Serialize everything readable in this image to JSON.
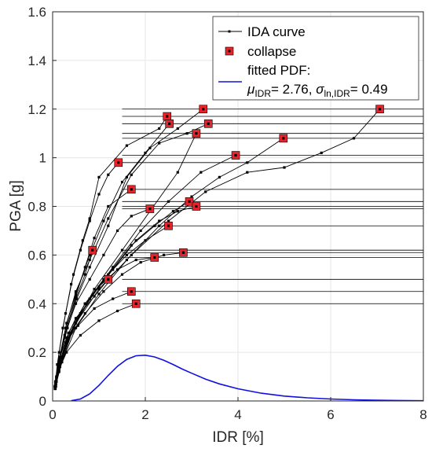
{
  "colors": {
    "ida": "#000000",
    "collapse_fill": "#e8242a",
    "pdf": "#1010e0",
    "axis": "#262626",
    "grid": "#e6e6e6"
  },
  "chart_data": {
    "type": "line",
    "xlabel": "IDR [%]",
    "ylabel": "PGA [g]",
    "xlim": [
      0,
      8
    ],
    "ylim": [
      0,
      1.6
    ],
    "xticks": [
      0,
      2,
      4,
      6,
      8
    ],
    "yticks": [
      0,
      0.2,
      0.4,
      0.6,
      0.8,
      1,
      1.2,
      1.4,
      1.6
    ],
    "xtick_labels": [
      "0",
      "2",
      "4",
      "6",
      "8"
    ],
    "ytick_labels": [
      "0",
      "0.2",
      "0.4",
      "0.6",
      "0.8",
      "1",
      "1.2",
      "1.4",
      "1.6"
    ],
    "grid": true,
    "legend_position": "top-right",
    "legend": {
      "ida": "IDA curve",
      "collapse": "collapse",
      "pdf_line1": "fitted PDF:",
      "mu_sym": "μ",
      "mu_sub": "IDR",
      "mu_val": "= 2.76, ",
      "sigma_sym": "σ",
      "sigma_sub": "ln,IDR",
      "sigma_val": "= 0.49"
    },
    "fitted_pdf": {
      "mu": 2.76,
      "sigma_ln": 0.49,
      "x": [
        0.4,
        0.6,
        0.8,
        1.0,
        1.2,
        1.4,
        1.6,
        1.8,
        2.0,
        2.2,
        2.4,
        2.6,
        2.8,
        3.0,
        3.3,
        3.6,
        4.0,
        4.5,
        5.0,
        5.5,
        6.0,
        6.5,
        7.0,
        7.5,
        8.0
      ],
      "y": [
        0.001,
        0.008,
        0.029,
        0.064,
        0.105,
        0.143,
        0.171,
        0.186,
        0.188,
        0.181,
        0.167,
        0.15,
        0.131,
        0.114,
        0.09,
        0.07,
        0.05,
        0.032,
        0.02,
        0.013,
        0.008,
        0.005,
        0.003,
        0.002,
        0.001
      ]
    },
    "series": [
      {
        "x": [
          0.06,
          0.1,
          0.22,
          0.4,
          0.6,
          0.8,
          1.0,
          1.2,
          1.42
        ],
        "y": [
          0.07,
          0.15,
          0.3,
          0.48,
          0.62,
          0.74,
          0.85,
          0.93,
          0.98
        ],
        "collapse": [
          1.42,
          0.98
        ]
      },
      {
        "x": [
          0.08,
          0.14,
          0.28,
          0.45,
          0.65,
          0.8,
          1.0,
          1.6,
          2.3,
          2.47
        ],
        "y": [
          0.1,
          0.2,
          0.36,
          0.52,
          0.66,
          0.75,
          0.92,
          1.05,
          1.12,
          1.17
        ],
        "collapse": [
          2.47,
          1.17
        ]
      },
      {
        "x": [
          0.05,
          0.12,
          0.3,
          0.5,
          0.8,
          1.1,
          1.5,
          2.0,
          2.52
        ],
        "y": [
          0.06,
          0.14,
          0.32,
          0.44,
          0.6,
          0.74,
          0.9,
          1.02,
          1.14
        ],
        "collapse": [
          2.52,
          1.14
        ]
      },
      {
        "x": [
          0.08,
          0.16,
          0.32,
          0.52,
          0.8,
          1.2,
          1.6,
          2.1,
          2.7,
          3.25
        ],
        "y": [
          0.09,
          0.18,
          0.3,
          0.42,
          0.55,
          0.72,
          0.92,
          1.04,
          1.12,
          1.2
        ],
        "collapse": [
          3.25,
          1.2
        ]
      },
      {
        "x": [
          0.06,
          0.14,
          0.28,
          0.5,
          0.8,
          1.2,
          1.7,
          2.3,
          2.9,
          3.36
        ],
        "y": [
          0.08,
          0.17,
          0.3,
          0.45,
          0.58,
          0.75,
          0.93,
          1.06,
          1.1,
          1.14
        ],
        "collapse": [
          3.36,
          1.14
        ]
      },
      {
        "x": [
          0.06,
          0.14,
          0.3,
          0.5,
          0.7,
          0.9,
          1.2,
          1.7
        ],
        "y": [
          0.05,
          0.16,
          0.3,
          0.43,
          0.55,
          0.67,
          0.8,
          0.87
        ],
        "collapse": [
          1.7,
          0.87
        ]
      },
      {
        "x": [
          0.05,
          0.12,
          0.26,
          0.5,
          0.8,
          1.1,
          1.4,
          1.7,
          2.1
        ],
        "y": [
          0.06,
          0.14,
          0.27,
          0.4,
          0.5,
          0.6,
          0.7,
          0.76,
          0.79
        ],
        "collapse": [
          2.1,
          0.79
        ]
      },
      {
        "x": [
          0.08,
          0.16,
          0.3,
          0.5,
          0.7,
          0.86
        ],
        "y": [
          0.08,
          0.18,
          0.3,
          0.42,
          0.52,
          0.62
        ],
        "collapse": [
          0.86,
          0.62
        ]
      },
      {
        "x": [
          0.06,
          0.16,
          0.3,
          0.5,
          0.9,
          1.2
        ],
        "y": [
          0.08,
          0.18,
          0.26,
          0.34,
          0.43,
          0.5
        ],
        "collapse": [
          1.2,
          0.5
        ]
      },
      {
        "x": [
          0.05,
          0.12,
          0.28,
          0.55,
          0.9,
          1.3,
          1.7
        ],
        "y": [
          0.06,
          0.14,
          0.24,
          0.31,
          0.38,
          0.42,
          0.45
        ],
        "collapse": [
          1.7,
          0.45
        ]
      },
      {
        "x": [
          0.07,
          0.14,
          0.3,
          0.6,
          1.0,
          1.4,
          1.8
        ],
        "y": [
          0.06,
          0.13,
          0.2,
          0.27,
          0.33,
          0.37,
          0.4
        ],
        "collapse": [
          1.8,
          0.4
        ]
      },
      {
        "x": [
          0.06,
          0.14,
          0.32,
          0.6,
          1.0,
          1.4,
          1.8,
          2.2
        ],
        "y": [
          0.06,
          0.14,
          0.25,
          0.36,
          0.47,
          0.54,
          0.58,
          0.59
        ],
        "collapse": [
          2.2,
          0.59
        ]
      },
      {
        "x": [
          0.07,
          0.16,
          0.34,
          0.7,
          1.1,
          1.5,
          1.9,
          2.4,
          2.82
        ],
        "y": [
          0.07,
          0.15,
          0.26,
          0.36,
          0.45,
          0.52,
          0.57,
          0.6,
          0.61
        ],
        "collapse": [
          2.82,
          0.61
        ]
      },
      {
        "x": [
          0.06,
          0.14,
          0.34,
          0.7,
          1.1,
          1.6,
          2.0,
          2.5
        ],
        "y": [
          0.06,
          0.14,
          0.28,
          0.4,
          0.5,
          0.6,
          0.66,
          0.72
        ],
        "collapse": [
          2.5,
          0.72
        ]
      },
      {
        "x": [
          0.05,
          0.14,
          0.32,
          0.7,
          1.2,
          1.7,
          2.2,
          2.6,
          2.95
        ],
        "y": [
          0.05,
          0.12,
          0.26,
          0.4,
          0.52,
          0.64,
          0.72,
          0.78,
          0.82
        ],
        "collapse": [
          2.95,
          0.82
        ]
      },
      {
        "x": [
          0.06,
          0.16,
          0.38,
          0.8,
          1.3,
          1.8,
          2.3,
          2.7,
          3.1
        ],
        "y": [
          0.06,
          0.14,
          0.28,
          0.42,
          0.54,
          0.66,
          0.74,
          0.78,
          0.8
        ],
        "collapse": [
          3.1,
          0.8
        ]
      },
      {
        "x": [
          0.07,
          0.18,
          0.4,
          0.8,
          1.3,
          1.9,
          2.5,
          3.2,
          3.95
        ],
        "y": [
          0.07,
          0.16,
          0.28,
          0.42,
          0.55,
          0.7,
          0.82,
          0.94,
          1.01
        ],
        "collapse": [
          3.95,
          1.01
        ]
      },
      {
        "x": [
          0.08,
          0.2,
          0.45,
          0.9,
          1.5,
          2.1,
          2.7,
          3.1
        ],
        "y": [
          0.08,
          0.16,
          0.3,
          0.46,
          0.62,
          0.78,
          0.94,
          1.1
        ],
        "collapse": [
          3.1,
          1.1
        ]
      },
      {
        "x": [
          0.06,
          0.2,
          0.5,
          1.0,
          1.6,
          2.3,
          3.0,
          3.6,
          4.2,
          4.98
        ],
        "y": [
          0.06,
          0.16,
          0.3,
          0.44,
          0.58,
          0.72,
          0.84,
          0.92,
          0.98,
          1.08
        ],
        "collapse": [
          4.98,
          1.08
        ]
      },
      {
        "x": [
          0.08,
          0.2,
          0.5,
          1.0,
          1.7,
          2.5,
          3.3,
          4.2,
          5.0,
          5.8,
          6.5,
          7.06
        ],
        "y": [
          0.08,
          0.18,
          0.32,
          0.46,
          0.6,
          0.74,
          0.86,
          0.94,
          0.96,
          1.02,
          1.08,
          1.2
        ],
        "collapse": [
          7.06,
          1.2
        ]
      }
    ],
    "plateau_levels": [
      1.2,
      1.17,
      1.14,
      1.1,
      1.08,
      1.01,
      0.98,
      0.87,
      0.82,
      0.8,
      0.79,
      0.72,
      0.62,
      0.61,
      0.59,
      0.5,
      0.45,
      0.4
    ]
  }
}
